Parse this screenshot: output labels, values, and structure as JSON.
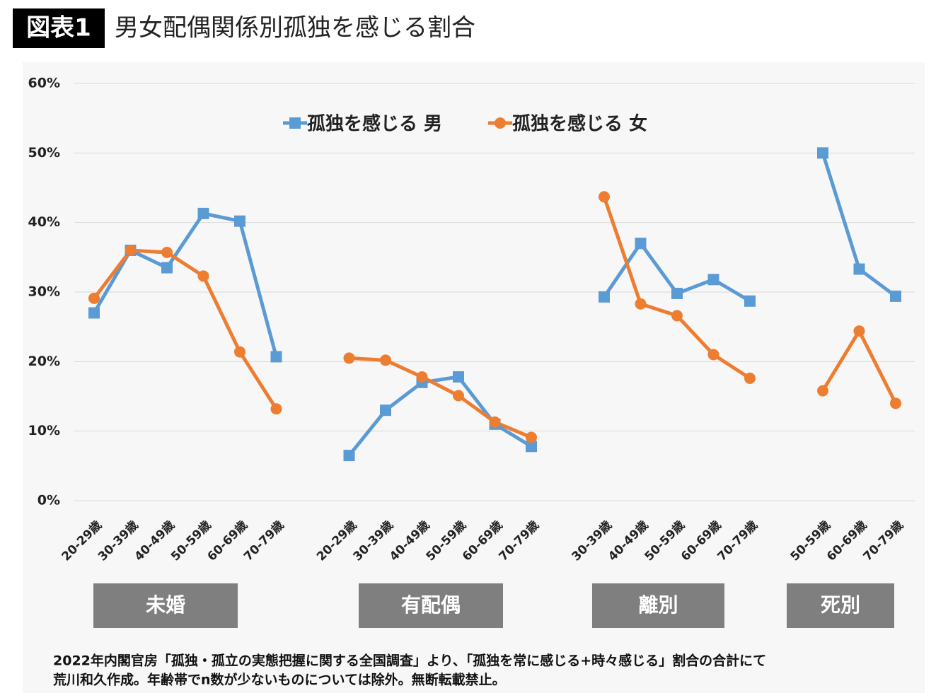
{
  "header": {
    "badge": "図表1",
    "title": "男女配偶関係別孤独を感じる割合"
  },
  "chart_data": {
    "type": "line",
    "categories": [
      "20-29歳",
      "30-39歳",
      "40-49歳",
      "50-59歳",
      "60-69歳",
      "70-79歳",
      null,
      "20-29歳",
      "30-39歳",
      "40-49歳",
      "50-59歳",
      "60-69歳",
      "70-79歳",
      null,
      "30-39歳",
      "40-49歳",
      "50-59歳",
      "60-69歳",
      "70-79歳",
      null,
      "50-59歳",
      "60-69歳",
      "70-79歳"
    ],
    "groups": [
      "未婚",
      "有配偶",
      "離別",
      "死別"
    ],
    "series": [
      {
        "name": "孤独を感じる 男",
        "color": "#5b9bd5",
        "marker": "square",
        "values": [
          27.0,
          36.0,
          33.5,
          41.3,
          40.2,
          20.7,
          null,
          6.5,
          13.0,
          17.0,
          17.8,
          11.0,
          7.8,
          null,
          29.3,
          37.0,
          29.8,
          31.8,
          28.7,
          null,
          50.0,
          33.3,
          29.4
        ]
      },
      {
        "name": "孤独を感じる 女",
        "color": "#ed7d31",
        "marker": "circle",
        "values": [
          29.1,
          36.0,
          35.7,
          32.3,
          21.4,
          13.2,
          null,
          20.5,
          20.2,
          17.8,
          15.1,
          11.3,
          9.1,
          null,
          43.7,
          28.3,
          26.6,
          21.0,
          17.6,
          null,
          15.8,
          24.4,
          14.0
        ]
      }
    ],
    "ylim": [
      0,
      60
    ],
    "yticks": [
      {
        "value": 0,
        "label": "0%"
      },
      {
        "value": 10,
        "label": "10%"
      },
      {
        "value": 20,
        "label": "20%"
      },
      {
        "value": 30,
        "label": "30%"
      },
      {
        "value": 40,
        "label": "40%"
      },
      {
        "value": 50,
        "label": "50%"
      },
      {
        "value": 60,
        "label": "60%"
      }
    ],
    "grid": true,
    "legend": "top"
  },
  "footnote": [
    "2022年内閣官房「孤独・孤立の実態把握に関する全国調査」より、「孤独を常に感じる+時々感じる」割合の合計にて",
    "荒川和久作成。年齢帯でn数が少ないものについては除外。無断転載禁止。"
  ]
}
